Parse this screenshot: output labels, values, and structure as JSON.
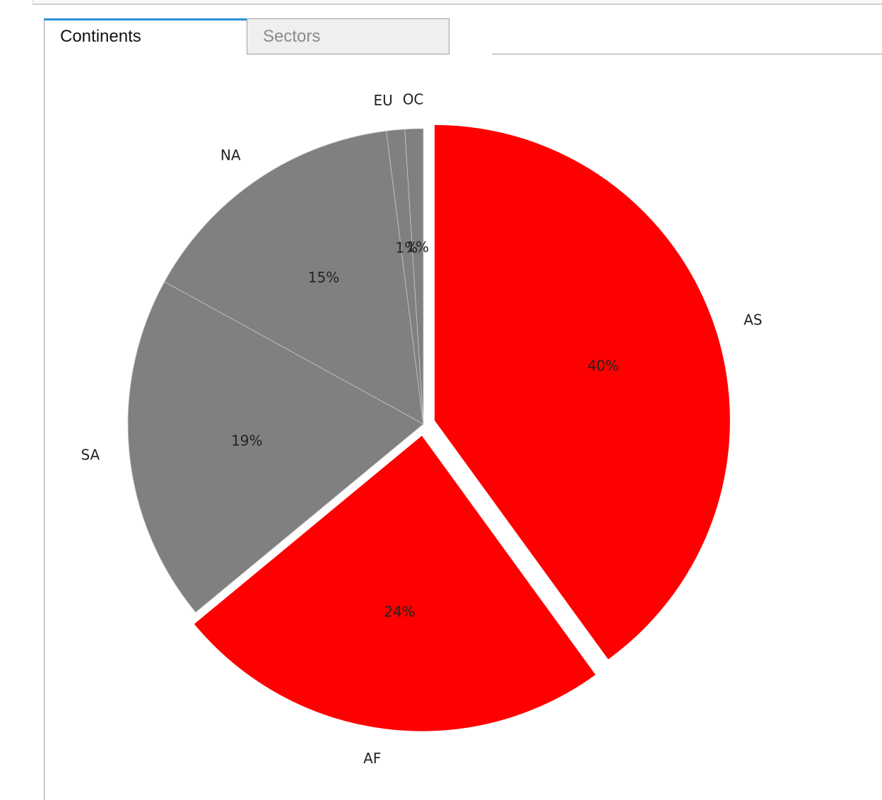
{
  "tabs": [
    {
      "label": "Continents",
      "active": true
    },
    {
      "label": "Sectors",
      "active": false
    }
  ],
  "chart_data": {
    "type": "pie",
    "start_angle_deg": 90,
    "direction": "clockwise",
    "slices": [
      {
        "label": "AS",
        "value": 40,
        "pct_label": "40%",
        "color": "#ff0000",
        "exploded": true
      },
      {
        "label": "AF",
        "value": 24,
        "pct_label": "24%",
        "color": "#ff0000",
        "exploded": true
      },
      {
        "label": "SA",
        "value": 19,
        "pct_label": "19%",
        "color": "#808080",
        "exploded": false
      },
      {
        "label": "NA",
        "value": 15,
        "pct_label": "15%",
        "color": "#808080",
        "exploded": false
      },
      {
        "label": "EU",
        "value": 1,
        "pct_label": "1%",
        "color": "#808080",
        "exploded": false
      },
      {
        "label": "OC",
        "value": 1,
        "pct_label": "1%",
        "color": "#808080",
        "exploded": false
      }
    ]
  }
}
